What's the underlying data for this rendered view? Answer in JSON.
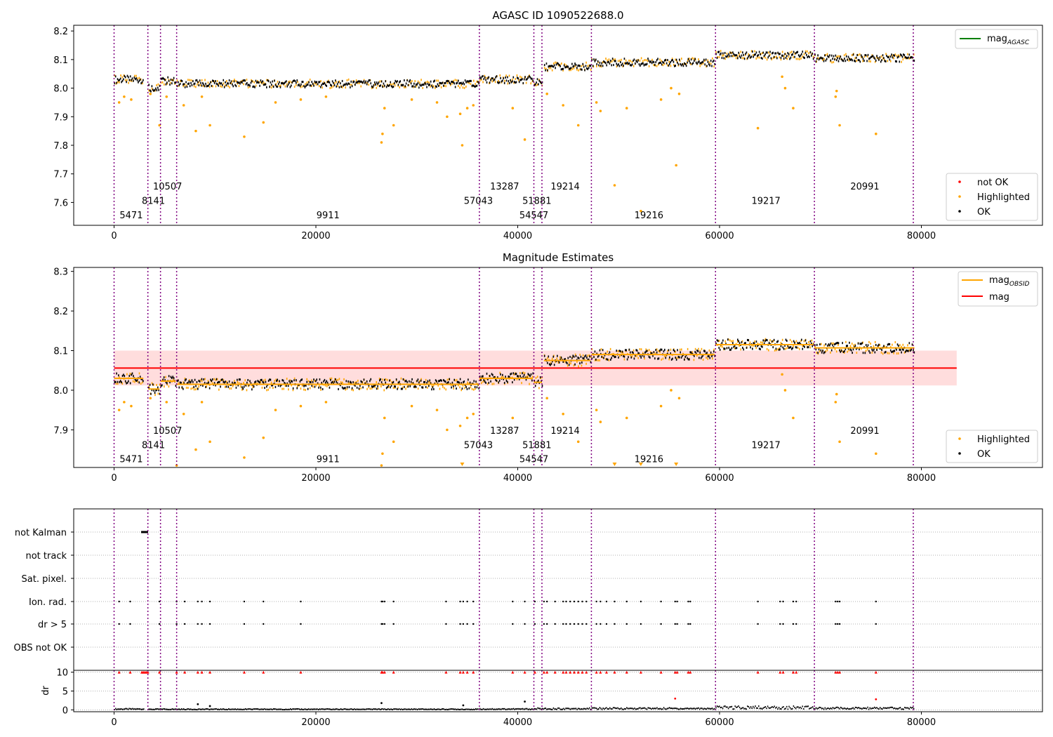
{
  "colors": {
    "ok": "#000000",
    "highlighted": "#ffa500",
    "not_ok": "#ff0000",
    "obs_boundary": "#800080",
    "mag_line": "#ff0000",
    "mag_band": "#ffdddd",
    "mag_agasc_line": "#008000",
    "mag_obsid_line": "#ffa500",
    "grid": "#b0b0b0"
  },
  "chart_data": [
    {
      "type": "scatter",
      "title": "AGASC ID 1090522688.0",
      "xlim": [
        -4000,
        92000
      ],
      "ylim": [
        7.52,
        8.22
      ],
      "x_ticks": [
        0,
        20000,
        40000,
        60000,
        80000
      ],
      "y_ticks": [
        7.6,
        7.7,
        7.8,
        7.9,
        8.0,
        8.1,
        8.2
      ],
      "legend_upper": [
        "mag_AGASC"
      ],
      "legend_lower": [
        "not OK",
        "Highlighted",
        "OK"
      ],
      "legend_placement": [
        "upper right",
        "lower right"
      ],
      "obs_boundaries": [
        0,
        3350,
        4600,
        6200,
        36200,
        41600,
        42400,
        47300,
        59600,
        69400,
        79200
      ],
      "obsid_labels": [
        {
          "text": "5471",
          "x": 1700,
          "y": 7.545
        },
        {
          "text": "8141",
          "x": 3900,
          "y": 7.595
        },
        {
          "text": "10507",
          "x": 5300,
          "y": 7.645
        },
        {
          "text": "9911",
          "x": 21200,
          "y": 7.545
        },
        {
          "text": "57043",
          "x": 36100,
          "y": 7.595
        },
        {
          "text": "13287",
          "x": 38700,
          "y": 7.645
        },
        {
          "text": "54547",
          "x": 41600,
          "y": 7.545
        },
        {
          "text": "51881",
          "x": 41900,
          "y": 7.595
        },
        {
          "text": "19214",
          "x": 44700,
          "y": 7.645
        },
        {
          "text": "19216",
          "x": 53000,
          "y": 7.545
        },
        {
          "text": "19217",
          "x": 64600,
          "y": 7.595
        },
        {
          "text": "20991",
          "x": 74400,
          "y": 7.645
        }
      ],
      "ok_segments": [
        {
          "x": [
            0,
            2900
          ],
          "y": 8.03
        },
        {
          "x": [
            3400,
            4500
          ],
          "y": 8.0
        },
        {
          "x": [
            4600,
            6100
          ],
          "y": 8.025
        },
        {
          "x": [
            6200,
            36100
          ],
          "y": 8.015
        },
        {
          "x": [
            36200,
            41500
          ],
          "y": 8.03
        },
        {
          "x": [
            41600,
            42400
          ],
          "y": 8.02
        },
        {
          "x": [
            42600,
            47200
          ],
          "y": 8.075
        },
        {
          "x": [
            47300,
            59500
          ],
          "y": 8.09
        },
        {
          "x": [
            59600,
            69300
          ],
          "y": 8.115
        },
        {
          "x": [
            69400,
            79300
          ],
          "y": 8.105
        }
      ],
      "highlighted_points": [
        [
          500,
          7.95
        ],
        [
          1000,
          7.97
        ],
        [
          1700,
          7.96
        ],
        [
          3600,
          7.98
        ],
        [
          4500,
          7.87
        ],
        [
          5200,
          7.97
        ],
        [
          6900,
          7.94
        ],
        [
          8100,
          7.85
        ],
        [
          8700,
          7.97
        ],
        [
          9500,
          7.87
        ],
        [
          12900,
          7.83
        ],
        [
          14800,
          7.88
        ],
        [
          16000,
          7.95
        ],
        [
          18500,
          7.96
        ],
        [
          21000,
          7.97
        ],
        [
          26500,
          7.81
        ],
        [
          26600,
          7.84
        ],
        [
          26800,
          7.93
        ],
        [
          27700,
          7.87
        ],
        [
          29500,
          7.96
        ],
        [
          32000,
          7.95
        ],
        [
          33000,
          7.9
        ],
        [
          34300,
          7.91
        ],
        [
          34500,
          7.8
        ],
        [
          35000,
          7.93
        ],
        [
          35600,
          7.94
        ],
        [
          39500,
          7.93
        ],
        [
          40700,
          7.82
        ],
        [
          42900,
          7.98
        ],
        [
          44500,
          7.94
        ],
        [
          46000,
          7.87
        ],
        [
          47800,
          7.95
        ],
        [
          48200,
          7.92
        ],
        [
          49600,
          7.66
        ],
        [
          50800,
          7.93
        ],
        [
          52200,
          7.57
        ],
        [
          54200,
          7.96
        ],
        [
          55200,
          8.0
        ],
        [
          55700,
          7.73
        ],
        [
          56000,
          7.98
        ],
        [
          63800,
          7.86
        ],
        [
          66200,
          8.04
        ],
        [
          66500,
          8.0
        ],
        [
          67300,
          7.93
        ],
        [
          71500,
          7.97
        ],
        [
          71600,
          7.99
        ],
        [
          71900,
          7.87
        ],
        [
          75500,
          7.84
        ]
      ],
      "not_ok_points": []
    },
    {
      "type": "scatter",
      "title": "Magnitude Estimates",
      "xlim": [
        -4000,
        92000
      ],
      "ylim": [
        7.805,
        8.31
      ],
      "x_ticks": [
        0,
        20000,
        40000,
        60000,
        80000
      ],
      "y_ticks": [
        7.9,
        8.0,
        8.1,
        8.2,
        8.3
      ],
      "legend_upper": [
        "mag_OBSID",
        "mag"
      ],
      "legend_lower": [
        "Highlighted",
        "OK"
      ],
      "legend_placement": [
        "upper right",
        "lower right"
      ],
      "mag": 8.056,
      "mag_band": [
        8.012,
        8.1
      ],
      "mag_line_x": [
        0,
        83500
      ],
      "mag_obsid": [
        {
          "x": [
            0,
            2900
          ],
          "y": 8.03
        },
        {
          "x": [
            3400,
            4500
          ],
          "y": 8.003
        },
        {
          "x": [
            4600,
            6100
          ],
          "y": 8.023
        },
        {
          "x": [
            6200,
            36100
          ],
          "y": 8.015
        },
        {
          "x": [
            36200,
            41500
          ],
          "y": 8.03
        },
        {
          "x": [
            41600,
            42400
          ],
          "y": 8.02
        },
        {
          "x": [
            42600,
            47200
          ],
          "y": 8.075
        },
        {
          "x": [
            47300,
            59500
          ],
          "y": 8.09
        },
        {
          "x": [
            59600,
            69300
          ],
          "y": 8.115
        },
        {
          "x": [
            69400,
            79300
          ],
          "y": 8.107
        }
      ],
      "obs_boundaries": [
        0,
        3350,
        4600,
        6200,
        36200,
        41600,
        42400,
        47300,
        59600,
        69400,
        79200
      ],
      "obsid_labels": [
        {
          "text": "5471",
          "x": 1700,
          "y": 7.818
        },
        {
          "text": "8141",
          "x": 3900,
          "y": 7.854
        },
        {
          "text": "10507",
          "x": 5300,
          "y": 7.89
        },
        {
          "text": "9911",
          "x": 21200,
          "y": 7.818
        },
        {
          "text": "57043",
          "x": 36100,
          "y": 7.854
        },
        {
          "text": "13287",
          "x": 38700,
          "y": 7.89
        },
        {
          "text": "54547",
          "x": 41600,
          "y": 7.818
        },
        {
          "text": "51881",
          "x": 41900,
          "y": 7.854
        },
        {
          "text": "19214",
          "x": 44700,
          "y": 7.89
        },
        {
          "text": "19216",
          "x": 53000,
          "y": 7.818
        },
        {
          "text": "19217",
          "x": 64600,
          "y": 7.854
        },
        {
          "text": "20991",
          "x": 74400,
          "y": 7.89
        }
      ],
      "highlighted_points": [
        [
          500,
          7.95
        ],
        [
          1000,
          7.97
        ],
        [
          1700,
          7.96
        ],
        [
          3600,
          7.98
        ],
        [
          5200,
          7.97
        ],
        [
          6200,
          7.81
        ],
        [
          6900,
          7.94
        ],
        [
          8100,
          7.85
        ],
        [
          8700,
          7.97
        ],
        [
          9500,
          7.87
        ],
        [
          12900,
          7.83
        ],
        [
          14800,
          7.88
        ],
        [
          16000,
          7.95
        ],
        [
          18500,
          7.96
        ],
        [
          21000,
          7.97
        ],
        [
          26500,
          7.81
        ],
        [
          26600,
          7.84
        ],
        [
          26800,
          7.93
        ],
        [
          27700,
          7.87
        ],
        [
          29500,
          7.96
        ],
        [
          32000,
          7.95
        ],
        [
          33000,
          7.9
        ],
        [
          34300,
          7.91
        ],
        [
          35000,
          7.93
        ],
        [
          35600,
          7.94
        ],
        [
          39500,
          7.93
        ],
        [
          42900,
          7.98
        ],
        [
          44500,
          7.94
        ],
        [
          46000,
          7.87
        ],
        [
          47800,
          7.95
        ],
        [
          48200,
          7.92
        ],
        [
          50800,
          7.93
        ],
        [
          54200,
          7.96
        ],
        [
          55200,
          8.0
        ],
        [
          56000,
          7.98
        ],
        [
          66200,
          8.04
        ],
        [
          66500,
          8.0
        ],
        [
          67300,
          7.93
        ],
        [
          71500,
          7.97
        ],
        [
          71600,
          7.99
        ],
        [
          71900,
          7.87
        ],
        [
          75500,
          7.84
        ]
      ],
      "offscale_markers_x": [
        34500,
        49600,
        52200,
        55700
      ]
    },
    {
      "type": "scatter",
      "title": "",
      "xlim": [
        -4000,
        92000
      ],
      "x_ticks": [
        0,
        20000,
        40000,
        60000,
        80000
      ],
      "flag_rows": [
        "not Kalman",
        "not track",
        "Sat. pixel.",
        "Ion. rad.",
        "dr > 5",
        "OBS not OK"
      ],
      "obs_boundaries": [
        0,
        3350,
        4600,
        6200,
        36200,
        41600,
        42400,
        47300,
        59600,
        69400,
        79200
      ],
      "not_kalman_x": [
        2750,
        2800,
        2850,
        2900,
        2950,
        3000,
        3050,
        3100,
        3150,
        3200,
        3250,
        3300
      ],
      "flag_event_x": [
        500,
        1600,
        4500,
        6200,
        7000,
        8300,
        8700,
        9500,
        12900,
        14800,
        18500,
        26500,
        26600,
        26800,
        27700,
        32900,
        34300,
        34600,
        35000,
        35600,
        39500,
        40700,
        41700,
        42600,
        42900,
        43700,
        44500,
        44800,
        45200,
        45600,
        46000,
        46400,
        46800,
        47800,
        48200,
        48800,
        49600,
        50800,
        52200,
        54200,
        55600,
        55800,
        56900,
        57100,
        63800,
        66000,
        66300,
        67300,
        67600,
        71500,
        71700,
        71900,
        75500
      ],
      "dr": {
        "ylabel": "dr",
        "ylim": [
          -0.5,
          10.5
        ],
        "y_ticks": [
          0,
          5,
          10
        ],
        "high_x": [
          500,
          1600,
          2750,
          2900,
          3050,
          3200,
          3350,
          4500,
          6200,
          7000,
          8300,
          8700,
          9500,
          12900,
          14800,
          18500,
          26500,
          26600,
          26800,
          27700,
          32900,
          34300,
          34600,
          35000,
          35600,
          39500,
          40700,
          41700,
          42600,
          42900,
          43700,
          44500,
          44800,
          45200,
          45600,
          46000,
          46400,
          46800,
          47800,
          48200,
          48800,
          49600,
          50800,
          52200,
          54200,
          55600,
          55800,
          56900,
          57100,
          63800,
          66000,
          66300,
          67300,
          67600,
          71500,
          71700,
          71900,
          75500
        ],
        "high_value": 10,
        "spikes": [
          [
            8300,
            1.5
          ],
          [
            9500,
            1.0
          ],
          [
            26500,
            1.8
          ],
          [
            34600,
            1.2
          ],
          [
            40700,
            2.2
          ],
          [
            55600,
            3.0
          ],
          [
            75500,
            2.8
          ]
        ],
        "baseline_ranges": [
          [
            0,
            2900
          ],
          [
            3400,
            36100
          ],
          [
            36200,
            41500
          ],
          [
            41600,
            47200
          ],
          [
            47300,
            59500
          ],
          [
            59600,
            69300
          ],
          [
            69400,
            79300
          ]
        ],
        "baseline_values": [
          0.2,
          0.15,
          0.2,
          0.3,
          0.35,
          0.6,
          0.4
        ]
      }
    }
  ]
}
